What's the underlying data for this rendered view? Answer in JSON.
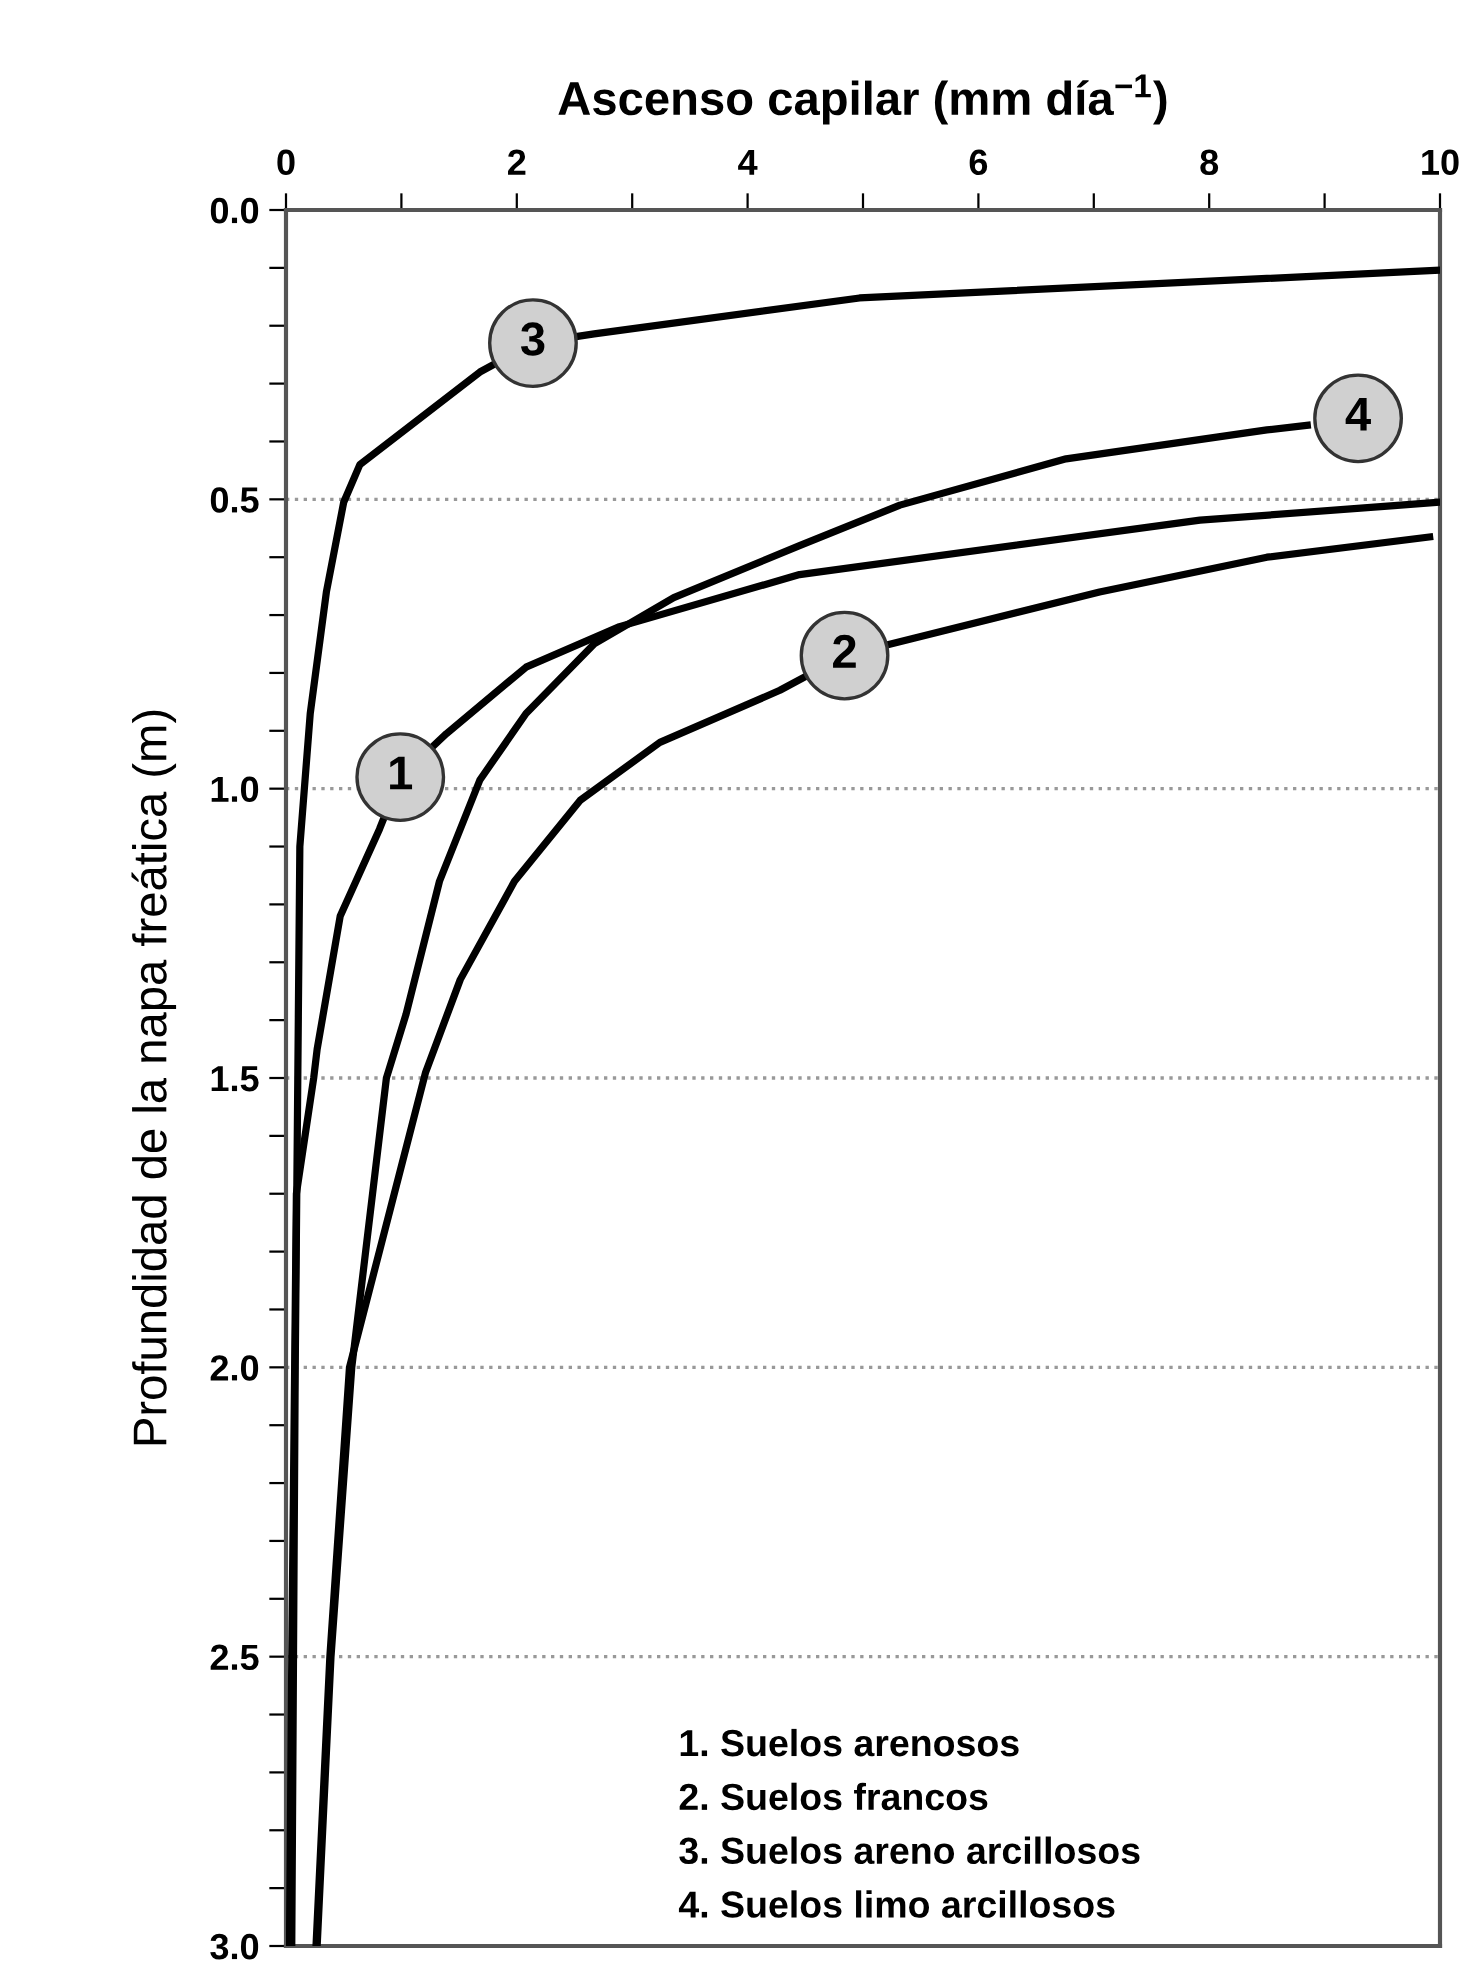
{
  "chart_data": {
    "type": "line",
    "xlabel": "Ascenso capilar (mm día$^{−1}$)",
    "ylabel": "Profundidad de la napa freática (m)",
    "xlim": [
      0,
      10
    ],
    "ylim": [
      3.0,
      0.0
    ],
    "xticks": [
      0,
      {
        "value": 1,
        "label": null
      },
      2,
      {
        "value": 3,
        "label": null
      },
      4,
      {
        "value": 5,
        "label": null
      },
      6,
      {
        "value": 7,
        "label": null
      },
      8,
      {
        "value": 9,
        "label": null
      },
      10
    ],
    "yticks": [
      {
        "value": 0,
        "label": "0.0"
      },
      {
        "value": 0.1,
        "label": null
      },
      {
        "value": 0.2,
        "label": null
      },
      {
        "value": 0.3,
        "label": null
      },
      {
        "value": 0.4,
        "label": null
      },
      {
        "value": 0.5,
        "label": "0.5"
      },
      {
        "value": 0.6,
        "label": null
      },
      {
        "value": 0.7,
        "label": null
      },
      {
        "value": 0.8,
        "label": null
      },
      {
        "value": 0.9,
        "label": null
      },
      {
        "value": 1.0,
        "label": "1.0"
      },
      {
        "value": 1.1,
        "label": null
      },
      {
        "value": 1.2,
        "label": null
      },
      {
        "value": 1.3,
        "label": null
      },
      {
        "value": 1.4,
        "label": null
      },
      {
        "value": 1.5,
        "label": "1.5"
      },
      {
        "value": 1.6,
        "label": null
      },
      {
        "value": 1.7,
        "label": null
      },
      {
        "value": 1.8,
        "label": null
      },
      {
        "value": 1.9,
        "label": null
      },
      {
        "value": 2.0,
        "label": "2.0"
      },
      {
        "value": 2.1,
        "label": null
      },
      {
        "value": 2.2,
        "label": null
      },
      {
        "value": 2.3,
        "label": null
      },
      {
        "value": 2.4,
        "label": null
      },
      {
        "value": 2.5,
        "label": "2.5"
      },
      {
        "value": 2.6,
        "label": null
      },
      {
        "value": 2.7,
        "label": null
      },
      {
        "value": 2.8,
        "label": null
      },
      {
        "value": 2.9,
        "label": null
      },
      {
        "value": 3.0,
        "label": "3.0"
      }
    ],
    "grid": "y",
    "line_style": "solid",
    "marker": "none",
    "series": [
      {
        "color": "#000000",
        "x": [
          0.03,
          0.05,
          0.09,
          0.24,
          0.27,
          0.47,
          0.81,
          0.99,
          1.39,
          2.08,
          2.89,
          4.45,
          7.92,
          10
        ],
        "values": [
          3.0,
          2.5,
          1.7,
          1.5,
          1.45,
          1.22,
          1.07,
          0.98,
          0.905,
          0.79,
          0.72,
          0.63,
          0.536,
          0.505
        ]
      },
      {
        "color": "#000000",
        "x": [
          0.26,
          0.38,
          0.55,
          1.21,
          1.51,
          1.98,
          2.55,
          3.24,
          4.28,
          4.84,
          5.44,
          7.05,
          8.5,
          9.91
        ],
        "values": [
          3.0,
          2.5,
          2.0,
          1.49,
          1.33,
          1.16,
          1.02,
          0.92,
          0.83,
          0.77,
          0.74,
          0.66,
          0.6,
          0.565
        ]
      },
      {
        "color": "#000000",
        "x": [
          0.05,
          0.08,
          0.12,
          0.21,
          0.35,
          0.5,
          0.64,
          1.68,
          2.14,
          2.67,
          4.97,
          10
        ],
        "values": [
          3.0,
          2.0,
          1.1,
          0.87,
          0.66,
          0.505,
          0.44,
          0.28,
          0.23,
          0.214,
          0.152,
          0.104
        ]
      },
      {
        "color": "#000000",
        "x": [
          0.27,
          0.39,
          0.57,
          0.87,
          1.04,
          1.33,
          1.68,
          2.08,
          2.67,
          3.36,
          4.45,
          5.32,
          6.76,
          8.5,
          8.85
        ],
        "values": [
          3.0,
          2.5,
          2.0,
          1.5,
          1.39,
          1.16,
          0.985,
          0.87,
          0.75,
          0.67,
          0.58,
          0.51,
          0.43,
          0.38,
          0.372
        ]
      }
    ],
    "annotations": [
      {
        "text": "1",
        "x": 0.99,
        "y": 0.98
      },
      {
        "text": "2",
        "x": 4.84,
        "y": 0.77
      },
      {
        "text": "3",
        "x": 2.14,
        "y": 0.23
      },
      {
        "text": "4",
        "x": 9.29,
        "y": 0.36
      },
      "1. Suelos arenosos",
      "2. Suelos francos",
      "3. Suelos areno arcillosos",
      "4. Suelos limo arcillosos"
    ]
  }
}
